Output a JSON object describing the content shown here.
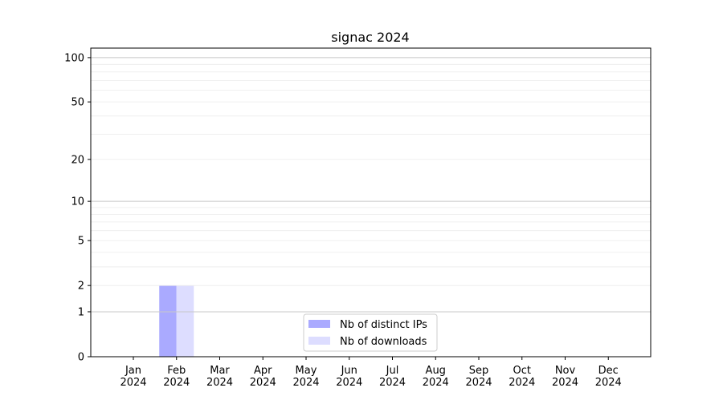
{
  "chart_data": {
    "type": "bar",
    "title": "signac 2024",
    "xlabel": "",
    "ylabel": "",
    "yscale": "log(1+y)",
    "ylim": [
      0,
      116
    ],
    "yticks": [
      0,
      1,
      2,
      5,
      10,
      20,
      50,
      100
    ],
    "ytick_labels": [
      "0",
      "1",
      "2",
      "5",
      "10",
      "20",
      "50",
      "100"
    ],
    "grid": true,
    "legend_position": "lower-center",
    "categories": [
      "Jan\n2024",
      "Feb\n2024",
      "Mar\n2024",
      "Apr\n2024",
      "May\n2024",
      "Jun\n2024",
      "Jul\n2024",
      "Aug\n2024",
      "Sep\n2024",
      "Oct\n2024",
      "Nov\n2024",
      "Dec\n2024"
    ],
    "category_lines": [
      [
        "Jan",
        "2024"
      ],
      [
        "Feb",
        "2024"
      ],
      [
        "Mar",
        "2024"
      ],
      [
        "Apr",
        "2024"
      ],
      [
        "May",
        "2024"
      ],
      [
        "Jun",
        "2024"
      ],
      [
        "Jul",
        "2024"
      ],
      [
        "Aug",
        "2024"
      ],
      [
        "Sep",
        "2024"
      ],
      [
        "Oct",
        "2024"
      ],
      [
        "Nov",
        "2024"
      ],
      [
        "Dec",
        "2024"
      ]
    ],
    "series": [
      {
        "name": "Nb of distinct IPs",
        "color": "#aaaaff",
        "values": [
          0,
          2,
          0,
          0,
          0,
          0,
          0,
          0,
          0,
          0,
          0,
          0
        ]
      },
      {
        "name": "Nb of downloads",
        "color": "#ddddff",
        "values": [
          0,
          2,
          0,
          0,
          0,
          0,
          0,
          0,
          0,
          0,
          0,
          0
        ]
      }
    ]
  }
}
